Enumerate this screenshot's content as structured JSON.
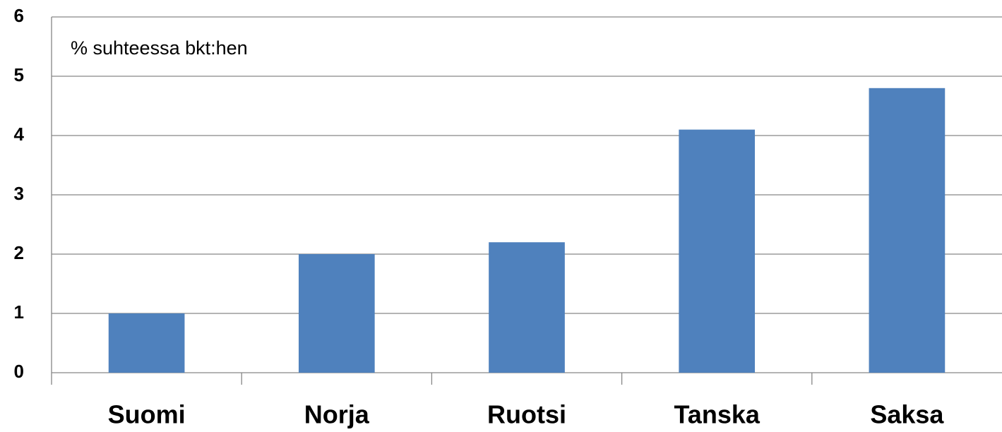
{
  "chart_data": {
    "type": "bar",
    "annotation": "% suhteessa bkt:hen",
    "categories": [
      "Suomi",
      "Norja",
      "Ruotsi",
      "Tanska",
      "Saksa"
    ],
    "values": [
      1,
      2,
      2.2,
      4.1,
      4.8
    ],
    "color": "#4f81bd",
    "ylim": [
      0,
      6
    ],
    "yticks": [
      0,
      1,
      2,
      3,
      4,
      5,
      6
    ],
    "grid": true
  }
}
